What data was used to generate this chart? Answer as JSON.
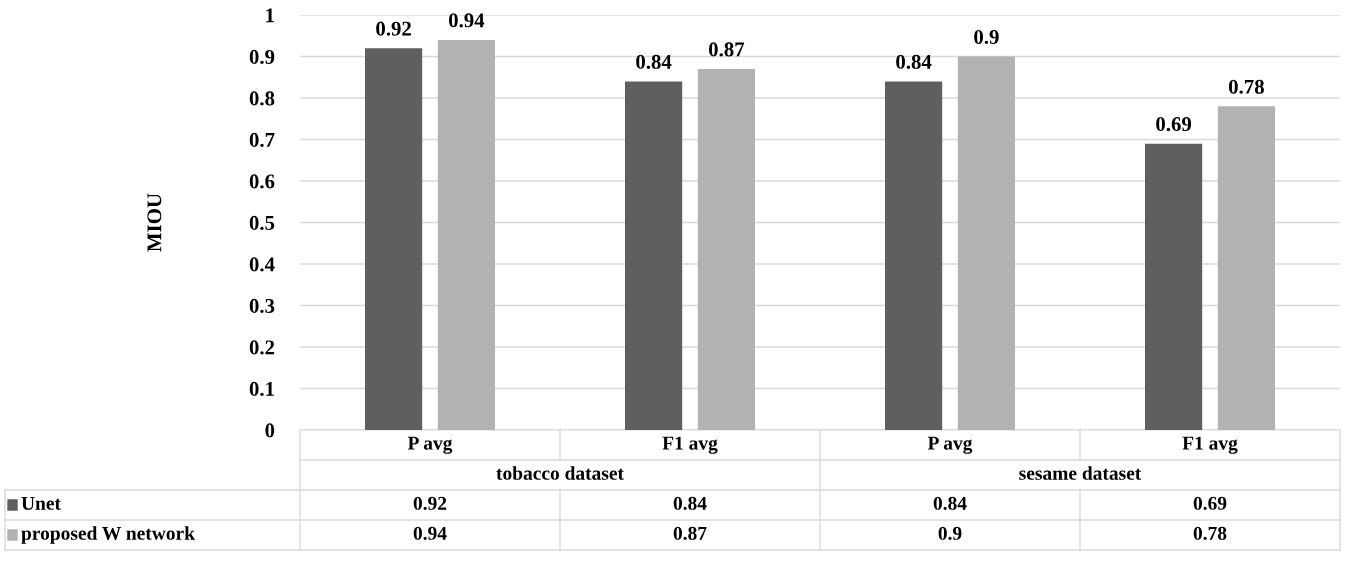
{
  "chart_data": {
    "type": "bar",
    "ylabel": "MIOU",
    "categories": [
      "P avg",
      "F1 avg",
      "P avg",
      "F1 avg"
    ],
    "annotations": [
      "tobacco dataset",
      "sesame dataset",
      "0.92",
      "0.84",
      "0.84",
      "0.69",
      "0.94",
      "0.87",
      "0.9",
      "0.78"
    ],
    "series": [
      {
        "name": "Unet",
        "color": "#5f5f5f",
        "values": [
          0.92,
          0.84,
          0.84,
          0.69
        ],
        "value_labels": [
          "0.92",
          "0.84",
          "0.84",
          "0.69"
        ]
      },
      {
        "name": "proposed W network",
        "color": "#b2b2b2",
        "values": [
          0.94,
          0.87,
          0.9,
          0.78
        ],
        "value_labels": [
          "0.94",
          "0.87",
          "0.9",
          "0.78"
        ]
      }
    ],
    "ylim": [
      0,
      1
    ],
    "yticks": [
      0,
      0.1,
      0.2,
      0.3,
      0.4,
      0.5,
      0.6,
      0.7,
      0.8,
      0.9,
      1
    ],
    "grid": "y",
    "data_labels": true,
    "legend": "bottom left"
  }
}
